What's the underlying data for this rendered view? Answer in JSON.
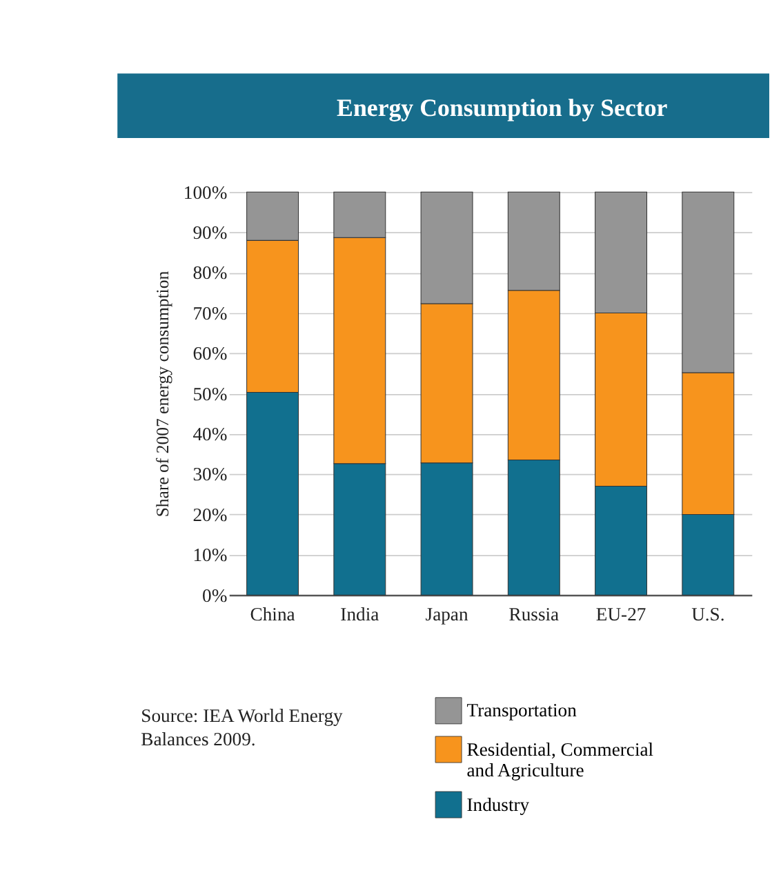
{
  "chart_data": {
    "type": "bar",
    "stacked": true,
    "title": "Energy Consumption by Sector",
    "ylabel": "Share of 2007 energy consumption",
    "categories": [
      "China",
      "India",
      "Japan",
      "Russia",
      "EU-27",
      "U.S."
    ],
    "series": [
      {
        "name": "Industry",
        "color": "#11708f",
        "values": [
          50.3,
          32.6,
          32.8,
          33.5,
          27,
          20
        ]
      },
      {
        "name": "Residential, Commercial and Agriculture",
        "color": "#f7941d",
        "values": [
          37.7,
          56.1,
          39.5,
          42.1,
          43,
          35.2
        ]
      },
      {
        "name": "Transportation",
        "color": "#959595",
        "values": [
          12,
          11.3,
          27.7,
          24.4,
          30,
          44.8
        ]
      }
    ],
    "ylim": [
      0,
      100
    ],
    "yticks": [
      {
        "value": 0,
        "label": "0%"
      },
      {
        "value": 10,
        "label": "10%"
      },
      {
        "value": 20,
        "label": "20%"
      },
      {
        "value": 30,
        "label": "30%"
      },
      {
        "value": 40,
        "label": "40%"
      },
      {
        "value": 50,
        "label": "50%"
      },
      {
        "value": 60,
        "label": "60%"
      },
      {
        "value": 70,
        "label": "70%"
      },
      {
        "value": 80,
        "label": "80%"
      },
      {
        "value": 90,
        "label": "90%"
      },
      {
        "value": 100,
        "label": "100%"
      }
    ],
    "grid": "y",
    "legend": "bottom right",
    "annotations": [
      "Source: IEA World Energy Balances 2009."
    ]
  }
}
